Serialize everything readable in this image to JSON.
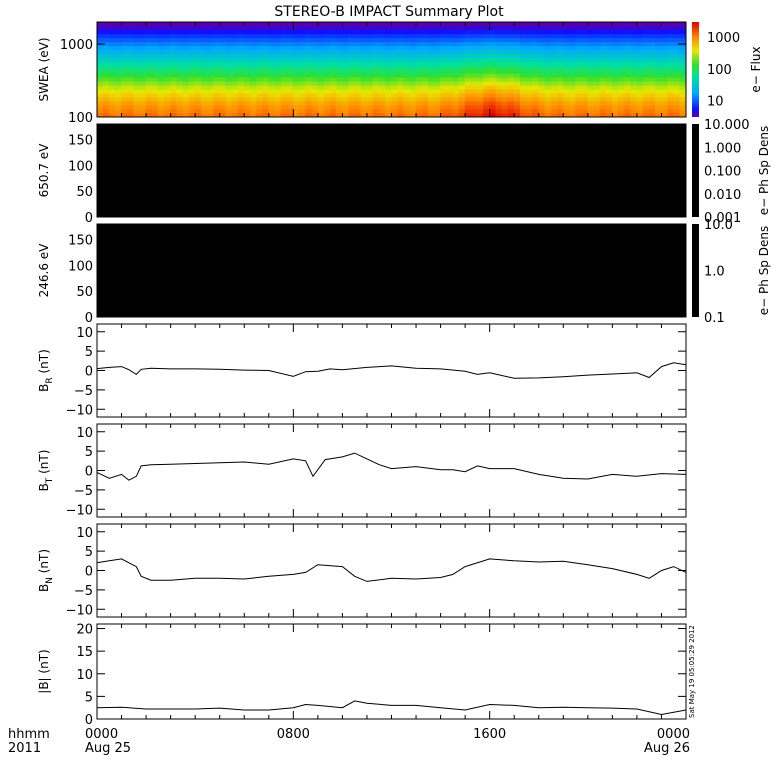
{
  "chart_data": [
    {
      "type": "heatmap",
      "title": "STEREO-B IMPACT Summary Plot",
      "ylabel": "SWEA (eV)",
      "y_scale": "log",
      "ylim": [
        100,
        2000
      ],
      "yticks": [
        "100",
        "1000"
      ],
      "colorbar": {
        "label": "e− Flux",
        "scale": "log",
        "range": [
          3,
          3000
        ],
        "ticks": [
          "10",
          "100",
          "1000"
        ]
      },
      "colormap": "rainbow",
      "colors": {
        "high": "#e01a00",
        "mid": "#28d040",
        "low": "#0a22ff"
      },
      "bands_at_start_eV_to_log10flux": [
        [
          100,
          3.1
        ],
        [
          150,
          2.9
        ],
        [
          250,
          2.5
        ],
        [
          400,
          2.0
        ],
        [
          650,
          1.5
        ],
        [
          1000,
          1.1
        ],
        [
          1500,
          0.7
        ],
        [
          2000,
          0.4
        ]
      ],
      "notes_shown": "highest flux near 1500-1700 UT at low energies"
    },
    {
      "type": "heatmap",
      "ylabel": "650.7 eV",
      "ylim": [
        0,
        180
      ],
      "yticks": [
        "0",
        "50",
        "100",
        "150"
      ],
      "fill": "#000000",
      "colorbar": {
        "label": "e− Ph Sp Dens",
        "scale": "log",
        "ticks": [
          "10.000",
          "1.000",
          "0.100",
          "0.010",
          "0.001"
        ]
      }
    },
    {
      "type": "heatmap",
      "ylabel": "246.6 eV",
      "ylim": [
        0,
        180
      ],
      "yticks": [
        "0",
        "50",
        "100",
        "150"
      ],
      "fill": "#000000",
      "colorbar": {
        "label": "e− Ph Sp Dens",
        "scale": "log",
        "ticks": [
          "10.0",
          "1.0",
          "0.1"
        ]
      }
    },
    {
      "type": "line",
      "ylabel": "B",
      "ylabel_sub": "R",
      "ylabel_unit": "(nT)",
      "ylim": [
        -12,
        12
      ],
      "yticks": [
        "−10",
        "−5",
        "0",
        "5",
        "10"
      ],
      "series": [
        {
          "x": [
            0,
            0.5,
            1.0,
            1.3,
            1.6,
            1.8,
            2.2,
            3,
            4,
            5,
            6,
            7,
            8,
            8.5,
            9,
            9.5,
            10,
            11,
            12,
            13,
            14,
            15,
            15.5,
            16,
            17,
            18,
            19,
            20,
            21,
            22,
            22.5,
            23,
            23.5,
            24
          ],
          "y": [
            0.5,
            0.8,
            1.0,
            0.2,
            -1.0,
            0.3,
            0.6,
            0.4,
            0.4,
            0.3,
            0.1,
            0.0,
            -1.5,
            -0.3,
            -0.2,
            0.4,
            0.2,
            0.8,
            1.2,
            0.6,
            0.4,
            -0.2,
            -1.0,
            -0.6,
            -2.0,
            -1.9,
            -1.6,
            -1.2,
            -0.9,
            -0.6,
            -1.8,
            1.0,
            2.0,
            1.5
          ]
        }
      ]
    },
    {
      "type": "line",
      "ylabel": "B",
      "ylabel_sub": "T",
      "ylabel_unit": "(nT)",
      "ylim": [
        -12,
        12
      ],
      "yticks": [
        "−10",
        "−5",
        "0",
        "5",
        "10"
      ],
      "series": [
        {
          "x": [
            0,
            0.5,
            1.0,
            1.3,
            1.6,
            1.8,
            2.2,
            3,
            4,
            5,
            6,
            7,
            8,
            8.5,
            8.8,
            9.3,
            10,
            10.5,
            11,
            11.5,
            12,
            13,
            14,
            14.5,
            15,
            15.5,
            16,
            17,
            18,
            19,
            20,
            21,
            22,
            23,
            24
          ],
          "y": [
            -0.5,
            -2.0,
            -1.0,
            -2.5,
            -1.5,
            1.2,
            1.5,
            1.6,
            1.8,
            2.0,
            2.2,
            1.6,
            3.0,
            2.5,
            -1.5,
            2.8,
            3.5,
            4.5,
            3.0,
            1.5,
            0.5,
            1.0,
            0.2,
            0.2,
            -0.3,
            1.2,
            0.5,
            0.5,
            -1.0,
            -2.0,
            -2.2,
            -1.0,
            -1.5,
            -0.8,
            -1.0
          ]
        }
      ]
    },
    {
      "type": "line",
      "ylabel": "B",
      "ylabel_sub": "N",
      "ylabel_unit": "(nT)",
      "ylim": [
        -12,
        12
      ],
      "yticks": [
        "−10",
        "−5",
        "0",
        "5",
        "10"
      ],
      "series": [
        {
          "x": [
            0,
            0.5,
            1.0,
            1.3,
            1.6,
            1.8,
            2.2,
            3,
            4,
            5,
            6,
            7,
            8,
            8.5,
            9,
            10,
            10.5,
            11,
            12,
            13,
            14,
            14.5,
            15,
            16,
            17,
            18,
            19,
            20,
            21,
            22,
            22.5,
            23,
            23.5,
            24
          ],
          "y": [
            2.0,
            2.5,
            3.0,
            2.0,
            1.0,
            -1.5,
            -2.5,
            -2.5,
            -2.0,
            -2.0,
            -2.2,
            -1.5,
            -1.0,
            -0.5,
            1.5,
            1.0,
            -1.5,
            -2.8,
            -2.0,
            -2.2,
            -1.8,
            -1.0,
            1.0,
            3.0,
            2.5,
            2.2,
            2.4,
            1.5,
            0.5,
            -1.0,
            -2.0,
            0.0,
            1.0,
            -0.5
          ]
        }
      ]
    },
    {
      "type": "line",
      "ylabel": "|B| (nT)",
      "ylim": [
        0,
        21
      ],
      "yticks": [
        "0",
        "5",
        "10",
        "15",
        "20"
      ],
      "series": [
        {
          "x": [
            0,
            1,
            2,
            3,
            4,
            5,
            6,
            7,
            8,
            8.5,
            9,
            10,
            10.5,
            11,
            12,
            13,
            14,
            15,
            16,
            17,
            18,
            19,
            20,
            21,
            22,
            23,
            24
          ],
          "y": [
            2.5,
            2.6,
            2.2,
            2.2,
            2.2,
            2.4,
            2.0,
            2.0,
            2.5,
            3.2,
            3.0,
            2.5,
            4.0,
            3.5,
            3.0,
            3.0,
            2.5,
            2.0,
            3.2,
            3.0,
            2.5,
            2.6,
            2.5,
            2.4,
            2.2,
            1.0,
            2.0
          ]
        }
      ]
    }
  ],
  "x_axis": {
    "row1_label": "hhmm",
    "row2_label": "2011",
    "ticks": [
      {
        "hour": 0,
        "label": "0000",
        "date": "Aug 25"
      },
      {
        "hour": 8,
        "label": "0800",
        "date": ""
      },
      {
        "hour": 16,
        "label": "1600",
        "date": ""
      },
      {
        "hour": 24,
        "label": "0000",
        "date": "Aug 26"
      }
    ],
    "xlim_hours": [
      0,
      24
    ]
  },
  "stamp": "Sat May 19 05:05:29 2012"
}
